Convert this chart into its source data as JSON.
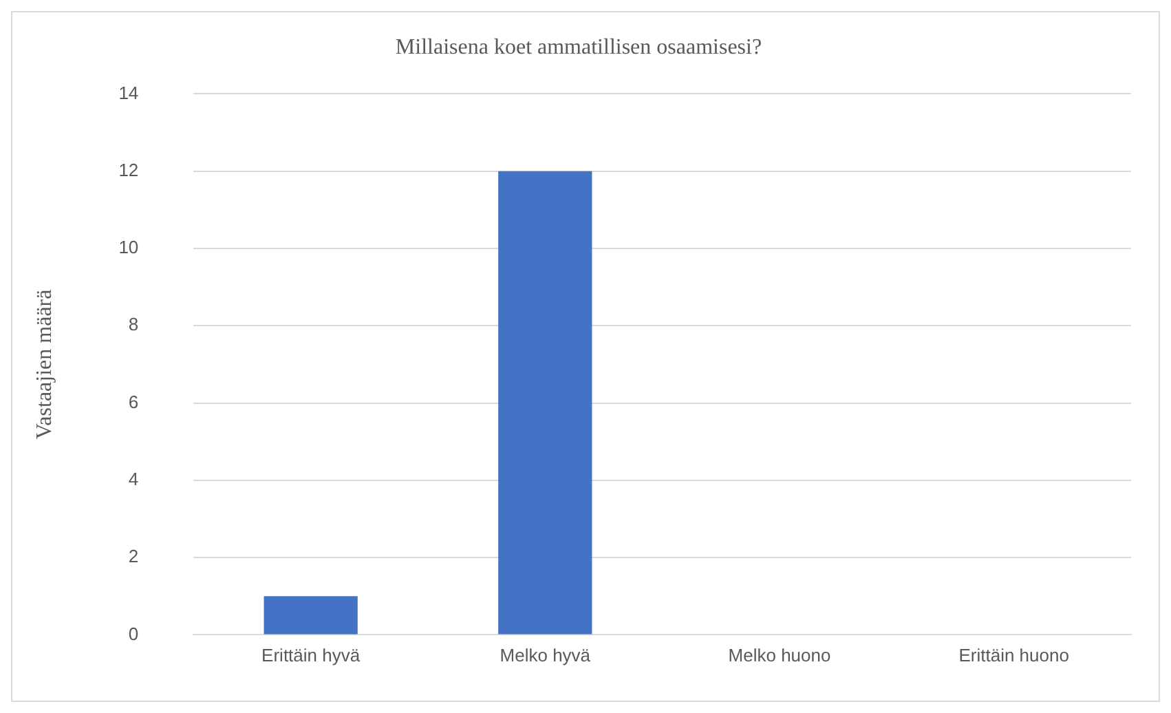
{
  "chart_data": {
    "type": "bar",
    "title": "Millaisena koet ammatillisen osaamisesi?",
    "ylabel": "Vastaajien määrä",
    "categories": [
      "Erittäin hyvä",
      "Melko hyvä",
      "Melko huono",
      "Erittäin huono"
    ],
    "values": [
      1,
      12,
      0,
      0
    ],
    "color": "#4472c4",
    "ylim": [
      0,
      14
    ],
    "yticks": [
      0,
      2,
      4,
      6,
      8,
      10,
      12,
      14
    ],
    "grid": "y"
  }
}
